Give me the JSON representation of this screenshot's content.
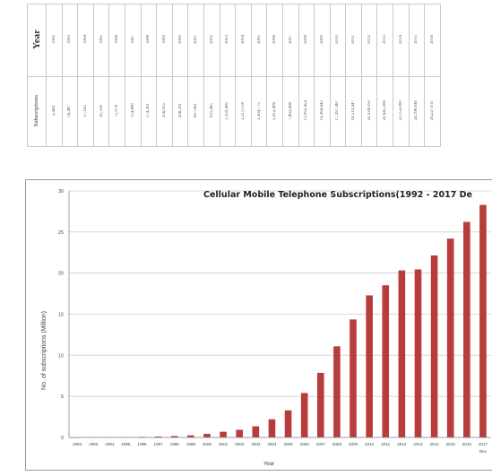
{
  "table": {
    "year_header": "Year",
    "subs_header": "Subscriptions",
    "rows": [
      {
        "year": "1992",
        "subs": "2,444"
      },
      {
        "year": "1993",
        "subs": "16,487"
      },
      {
        "year": "1994",
        "subs": "27,182"
      },
      {
        "year": "1995",
        "subs": "41,316"
      },
      {
        "year": "1996",
        "subs": "71,078"
      },
      {
        "year": "1997",
        "subs": "114,880"
      },
      {
        "year": "1998",
        "subs": "174,301"
      },
      {
        "year": "1999",
        "subs": "256,955"
      },
      {
        "year": "2000",
        "subs": "438,201"
      },
      {
        "year": "2001",
        "subs": "697,961"
      },
      {
        "year": "2002",
        "subs": "931,485"
      },
      {
        "year": "2003",
        "subs": "1,359,400"
      },
      {
        "year": "2004",
        "subs": "2,211,158"
      },
      {
        "year": "2005",
        "subs": "3,304,775"
      },
      {
        "year": "2006",
        "subs": "5,412,406"
      },
      {
        "year": "2007",
        "subs": "7,863,668"
      },
      {
        "year": "2008",
        "subs": "11,092,454"
      },
      {
        "year": "2009",
        "subs": "14,364,442"
      },
      {
        "year": "2010",
        "subs": "17,287,487"
      },
      {
        "year": "2011",
        "subs": "18,519,447"
      },
      {
        "year": "2012",
        "subs": "20,328,050"
      },
      {
        "year": "2013",
        "subs": "20,445,586"
      },
      {
        "year": "2014",
        "subs": "22,153,080"
      },
      {
        "year": "2015",
        "subs": "24,198,946"
      },
      {
        "year": "2016",
        "subs": "26,227,011"
      }
    ]
  },
  "chart_data": {
    "type": "bar",
    "title": "Cellular Mobile Telephone Subscriptions(1992 - 2017 De",
    "xlabel": "Year",
    "ylabel": "No. of subscriptions (Million)",
    "categories": [
      "1992",
      "1993",
      "1994",
      "1995",
      "1996",
      "1997",
      "1998",
      "1999",
      "2000",
      "2001",
      "2002",
      "2003",
      "2004",
      "2005",
      "2006",
      "2007",
      "2008",
      "2009",
      "2010",
      "2011",
      "2012",
      "2013",
      "2014",
      "2015",
      "2016",
      "2017"
    ],
    "last_category_sublabel": "Dec",
    "values": [
      0.002,
      0.016,
      0.027,
      0.041,
      0.071,
      0.115,
      0.174,
      0.257,
      0.438,
      0.698,
      0.931,
      1.36,
      2.21,
      3.3,
      5.41,
      7.86,
      11.09,
      14.36,
      17.29,
      18.52,
      20.33,
      20.45,
      22.15,
      24.2,
      26.23,
      28.3
    ],
    "ylim": [
      0,
      30
    ],
    "yticks": [
      "0",
      "5",
      "10",
      "15",
      "20",
      "25",
      "30"
    ],
    "bar_color": "#b83c3c",
    "grid": true,
    "legend": "none"
  }
}
